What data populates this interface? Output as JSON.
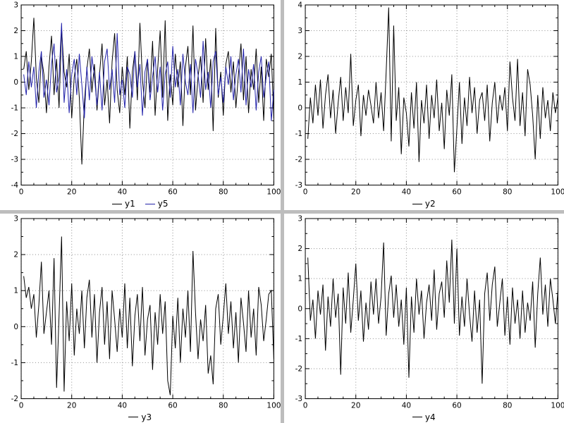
{
  "app": {
    "background": "#ffffff",
    "separator_color": "#bdbdbd",
    "grid_color": "#909090",
    "frame_color": "#000000"
  },
  "chart_data": [
    {
      "type": "line",
      "x_range": [
        0,
        100
      ],
      "y_range": [
        -4,
        3
      ],
      "x_ticks": [
        0,
        20,
        40,
        60,
        80,
        100
      ],
      "y_tick_step": 1,
      "grid": true,
      "legend_position": "bottom-center",
      "series": [
        {
          "name": "y1",
          "color": "#000000",
          "values": [
            0.5,
            1.2,
            -0.3,
            0.8,
            2.5,
            0.2,
            -0.8,
            1.0,
            0.3,
            -1.2,
            0.6,
            1.8,
            -0.5,
            0.9,
            -1.0,
            2.1,
            0.4,
            -0.2,
            1.1,
            -1.4,
            0.2,
            0.9,
            -0.6,
            -3.2,
            -0.8,
            0.5,
            1.3,
            -0.4,
            0.7,
            -1.1,
            0.3,
            1.5,
            -0.9,
            0.1,
            -1.6,
            0.8,
            1.9,
            -0.3,
            -1.2,
            0.6,
            -0.5,
            1.0,
            -1.8,
            0.4,
            1.2,
            -0.7,
            2.3,
            0.1,
            -1.0,
            0.9,
            -0.4,
            1.6,
            -1.3,
            0.5,
            2.0,
            -0.6,
            2.4,
            -1.5,
            0.3,
            -0.9,
            1.1,
            -0.2,
            0.8,
            -1.7,
            0.6,
            1.4,
            -0.5,
            2.2,
            -1.1,
            0.2,
            1.0,
            -0.8,
            1.7,
            -0.3,
            0.9,
            -1.9,
            2.1,
            -0.6,
            0.4,
            -1.3,
            0.7,
            1.2,
            -0.4,
            0.8,
            -1.0,
            0.3,
            1.5,
            -0.7,
            1.0,
            -1.2,
            0.5,
            -0.3,
            1.3,
            -0.8,
            0.6,
            -1.5,
            0.9,
            0.2,
            1.1,
            -1.4
          ]
        },
        {
          "name": "y5",
          "color": "#2222aa",
          "values": [
            0.3,
            -0.5,
            0.8,
            -0.2,
            0.6,
            -1.0,
            0.4,
            1.2,
            -0.6,
            0.1,
            -0.9,
            0.7,
            1.5,
            -0.4,
            0.2,
            2.3,
            -0.8,
            0.5,
            -1.2,
            0.3,
            0.9,
            -0.5,
            1.1,
            -0.1,
            -1.4,
            0.6,
            -0.7,
            1.0,
            0.2,
            -0.9,
            0.4,
            -1.1,
            0.8,
            1.3,
            -0.3,
            0.5,
            -0.8,
            1.9,
            -0.5,
            0.1,
            -1.0,
            0.6,
            0.3,
            -0.6,
            1.2,
            -0.2,
            0.7,
            -1.3,
            0.4,
            0.9,
            -0.7,
            0.2,
            1.0,
            -0.4,
            0.6,
            -1.1,
            0.3,
            0.8,
            -0.6,
            1.4,
            -0.2,
            0.5,
            -0.9,
            1.1,
            0.0,
            -0.5,
            0.7,
            -1.2,
            0.9,
            0.3,
            -0.6,
            1.6,
            -0.3,
            0.4,
            -1.0,
            0.8,
            1.2,
            -0.5,
            0.2,
            -0.8,
            0.6,
            -0.1,
            1.0,
            -0.7,
            0.3,
            0.9,
            -0.4,
            1.3,
            -0.9,
            0.5,
            -0.2,
            0.7,
            -1.1,
            0.4,
            1.0,
            -0.6,
            0.2,
            0.8,
            -1.5,
            -0.3
          ]
        }
      ]
    },
    {
      "type": "line",
      "x_range": [
        0,
        100
      ],
      "y_range": [
        -3,
        4
      ],
      "x_ticks": [
        0,
        20,
        40,
        60,
        80,
        100
      ],
      "y_tick_step": 1,
      "grid": true,
      "legend_position": "bottom-center",
      "series": [
        {
          "name": "y2",
          "color": "#000000",
          "values": [
            -1.2,
            0.4,
            -0.6,
            0.9,
            -0.3,
            1.1,
            -0.8,
            0.5,
            1.3,
            -0.4,
            0.7,
            -1.0,
            0.2,
            1.2,
            -0.5,
            0.8,
            -0.2,
            2.1,
            -0.7,
            0.3,
            0.9,
            -1.1,
            0.5,
            -0.3,
            0.7,
            0.1,
            -0.6,
            1.0,
            -0.4,
            0.6,
            -0.9,
            1.4,
            3.9,
            -1.3,
            3.2,
            -0.5,
            0.8,
            -1.8,
            0.4,
            -0.2,
            -1.5,
            0.6,
            -0.8,
            1.0,
            -2.1,
            0.3,
            -0.6,
            0.9,
            -1.2,
            0.5,
            -0.4,
            1.1,
            -0.9,
            0.2,
            -1.6,
            0.7,
            -0.3,
            1.3,
            -2.5,
            -0.8,
            1.0,
            -1.4,
            0.4,
            -0.7,
            1.2,
            -0.2,
            0.8,
            -1.0,
            0.3,
            0.6,
            -0.5,
            0.9,
            -1.3,
            0.2,
            1.0,
            -0.6,
            0.5,
            -0.1,
            0.8,
            -0.9,
            1.8,
            0.4,
            -0.5,
            1.9,
            -0.7,
            0.6,
            -1.1,
            1.5,
            0.9,
            -0.3,
            -2.0,
            0.5,
            -1.2,
            0.8,
            -0.4,
            0.3,
            -0.9,
            0.6,
            -0.2,
            0.4
          ]
        }
      ]
    },
    {
      "type": "line",
      "x_range": [
        0,
        100
      ],
      "y_range": [
        -2,
        3
      ],
      "x_ticks": [
        0,
        20,
        40,
        60,
        80,
        100
      ],
      "y_tick_step": 1,
      "grid": true,
      "legend_position": "bottom-center",
      "series": [
        {
          "name": "y3",
          "color": "#000000",
          "values": [
            1.4,
            0.8,
            1.1,
            0.5,
            0.9,
            -0.3,
            0.6,
            1.8,
            -0.2,
            0.4,
            1.0,
            -0.5,
            1.9,
            -1.7,
            0.3,
            2.5,
            -1.8,
            0.7,
            -0.4,
            1.2,
            -0.8,
            0.5,
            -0.2,
            1.0,
            -0.6,
            0.8,
            1.3,
            -0.3,
            0.9,
            -1.0,
            0.4,
            1.1,
            -0.5,
            0.7,
            -0.9,
            1.0,
            0.2,
            -0.7,
            0.5,
            -0.3,
            1.2,
            -0.6,
            0.8,
            -1.1,
            0.3,
            0.9,
            -0.4,
            1.1,
            -0.8,
            0.2,
            0.6,
            -1.2,
            0.4,
            -0.5,
            0.9,
            -0.2,
            0.7,
            -1.5,
            -1.9,
            0.3,
            -0.6,
            0.8,
            -1.0,
            0.5,
            -0.3,
            1.0,
            -0.7,
            2.1,
            0.4,
            -0.9,
            0.2,
            -0.4,
            0.6,
            -1.3,
            -0.8,
            -1.6,
            0.5,
            0.9,
            -0.5,
            0.3,
            1.2,
            -0.2,
            0.7,
            -0.6,
            0.4,
            -1.0,
            0.8,
            0.1,
            -0.7,
            1.0,
            -0.3,
            0.5,
            -0.8,
            1.1,
            0.6,
            -0.4,
            0.2,
            0.9,
            1.0,
            -0.9
          ]
        }
      ]
    },
    {
      "type": "line",
      "x_range": [
        0,
        100
      ],
      "y_range": [
        -3,
        3
      ],
      "x_ticks": [
        0,
        20,
        40,
        60,
        80,
        100
      ],
      "y_tick_step": 1,
      "grid": true,
      "legend_position": "bottom-center",
      "series": [
        {
          "name": "y4",
          "color": "#000000",
          "values": [
            1.7,
            -0.4,
            0.3,
            -1.0,
            0.6,
            -0.2,
            0.8,
            -1.4,
            0.4,
            -0.6,
            1.0,
            -0.3,
            0.5,
            -2.2,
            0.7,
            -0.5,
            1.2,
            -0.8,
            0.3,
            1.5,
            -0.4,
            0.6,
            -1.1,
            0.2,
            -0.7,
            0.9,
            -0.2,
            1.0,
            -0.5,
            0.4,
            2.2,
            -0.9,
            0.5,
            1.1,
            -0.3,
            0.8,
            -0.6,
            0.3,
            -1.2,
            0.7,
            -2.3,
            0.4,
            -0.8,
            1.0,
            -0.2,
            0.6,
            -1.0,
            0.2,
            0.8,
            -0.4,
            1.3,
            -0.7,
            0.5,
            0.9,
            -0.3,
            1.6,
            0.2,
            2.3,
            -0.5,
            2.0,
            -0.9,
            0.4,
            -0.6,
            1.0,
            -0.2,
            -1.1,
            0.6,
            -0.8,
            0.3,
            -2.5,
            0.5,
            1.2,
            -0.4,
            0.8,
            1.4,
            -0.6,
            0.2,
            1.0,
            -0.9,
            0.4,
            -1.2,
            0.7,
            -0.5,
            0.3,
            -1.0,
            0.6,
            -0.8,
            0.2,
            -0.4,
            0.9,
            -1.3,
            0.5,
            1.7,
            -0.2,
            0.8,
            -0.6,
            1.0,
            0.3,
            -0.5,
            0.6
          ]
        }
      ]
    }
  ]
}
